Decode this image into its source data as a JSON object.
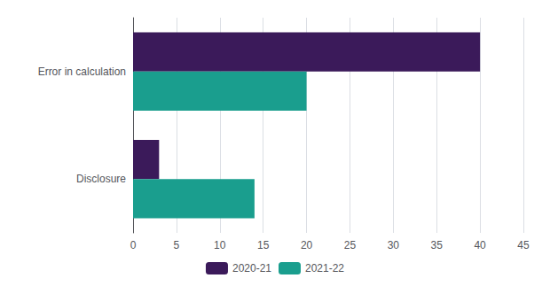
{
  "chart_data": {
    "type": "bar",
    "orientation": "horizontal",
    "categories": [
      "Error in calculation",
      "Disclosure"
    ],
    "series": [
      {
        "name": "2020-21",
        "color": "#3b1a5a",
        "values": [
          40,
          3
        ]
      },
      {
        "name": "2021-22",
        "color": "#1a9e8e",
        "values": [
          20,
          14
        ]
      }
    ],
    "xlim": [
      0,
      45
    ],
    "xticks": [
      0,
      5,
      10,
      15,
      20,
      25,
      30,
      35,
      40,
      45
    ],
    "grid": true,
    "legend": "bottom"
  }
}
